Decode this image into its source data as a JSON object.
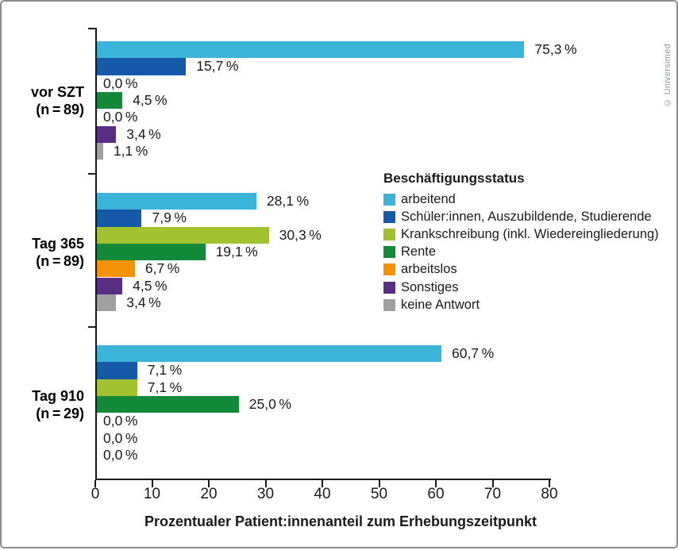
{
  "meta": {
    "credit": "© Universimed"
  },
  "chart_data": {
    "type": "bar",
    "orientation": "horizontal",
    "xlabel": "Prozentualer Patient:innenanteil zum Erhebungszeitpunkt",
    "xlim": [
      0,
      80
    ],
    "x_tick_labels": [
      "0",
      "10",
      "20",
      "30",
      "40",
      "50",
      "60",
      "70",
      "80"
    ],
    "grid": false,
    "legend_title": "Beschäftigungsstatus",
    "legend_position": "right-middle",
    "categories": [
      {
        "name": "arbeitend",
        "color": "#3CB4DA"
      },
      {
        "name": "Schüler:innen, Auszubildende, Studierende",
        "color": "#1559A8"
      },
      {
        "name": "Krankschreibung (inkl. Wiedereingliederung)",
        "color": "#A3C22F"
      },
      {
        "name": "Rente",
        "color": "#128A3A"
      },
      {
        "name": "arbeitslos",
        "color": "#F39204"
      },
      {
        "name": "Sonstiges",
        "color": "#5A2D84"
      },
      {
        "name": "keine Antwort",
        "color": "#A0A0A0"
      }
    ],
    "groups": [
      {
        "label": "vor SZT",
        "n_label": "(n = 89)",
        "values": [
          75.3,
          15.7,
          0.0,
          4.5,
          0.0,
          3.4,
          1.1
        ],
        "value_labels": [
          "75,3 %",
          "15,7 %",
          "0,0 %",
          "4,5 %",
          "0,0 %",
          "3,4 %",
          "1,1 %"
        ]
      },
      {
        "label": "Tag 365",
        "n_label": "(n = 89)",
        "values": [
          28.1,
          7.9,
          30.3,
          19.1,
          6.7,
          4.5,
          3.4
        ],
        "value_labels": [
          "28,1 %",
          "7,9 %",
          "30,3 %",
          "19,1 %",
          "6,7 %",
          "4,5 %",
          "3,4 %"
        ]
      },
      {
        "label": "Tag 910",
        "n_label": "(n = 29)",
        "values": [
          60.7,
          7.1,
          7.1,
          25.0,
          0.0,
          0.0,
          0.0
        ],
        "value_labels": [
          "60,7 %",
          "7,1 %",
          "7,1 %",
          "25,0 %",
          "0,0 %",
          "0,0 %",
          "0,0 %"
        ]
      }
    ]
  }
}
